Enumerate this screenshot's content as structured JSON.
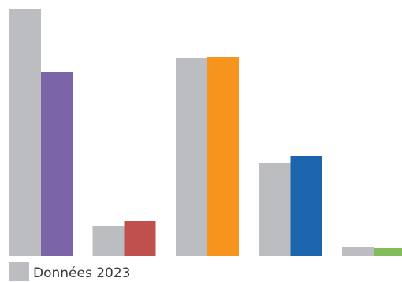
{
  "chart_data": {
    "type": "bar",
    "categories": [
      null,
      null,
      null,
      null,
      null
    ],
    "series": [
      {
        "name": "Données 2023",
        "color": "#bcbdc0",
        "values": [
          313,
          38,
          252,
          118,
          12
        ]
      },
      {
        "colors": [
          "#7b64a8",
          "#c0504d",
          "#f7941d",
          "#1a65ad",
          "#82bc5a"
        ],
        "values": [
          234,
          44,
          253,
          127,
          10
        ]
      }
    ]
  }
}
